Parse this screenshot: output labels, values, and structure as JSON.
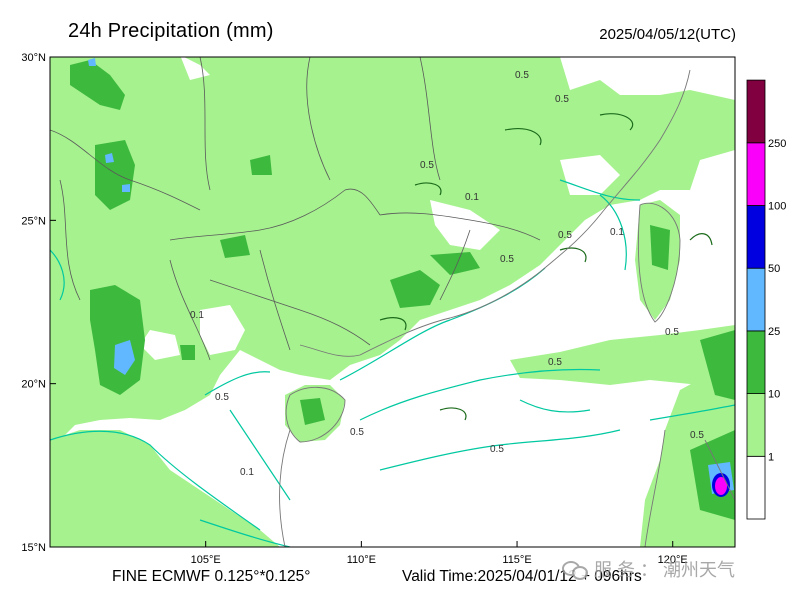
{
  "title": "24h Precipitation (mm)",
  "init_time": "2025/04/05/12(UTC)",
  "footer": {
    "model": "FINE ECMWF 0.125°*0.125°",
    "valid": "Valid Time:2025/04/01/12 + 096hrs"
  },
  "watermark": "服 务 ： 潮州天气",
  "map": {
    "lon_range": [
      100,
      122
    ],
    "lat_range": [
      15,
      30
    ],
    "lon_ticks": [
      {
        "v": 105,
        "label": "105°E"
      },
      {
        "v": 110,
        "label": "110°E"
      },
      {
        "v": 115,
        "label": "115°E"
      },
      {
        "v": 120,
        "label": "120°E"
      }
    ],
    "lat_ticks": [
      {
        "v": 15,
        "label": "15°N"
      },
      {
        "v": 20,
        "label": "20°N"
      },
      {
        "v": 25,
        "label": "25°N"
      },
      {
        "v": 30,
        "label": "30°N"
      }
    ]
  },
  "colorbar": {
    "bins": [
      {
        "color": "#ffffff",
        "label": "1"
      },
      {
        "color": "#a6f28f",
        "label": "10"
      },
      {
        "color": "#3dba3d",
        "label": "25"
      },
      {
        "color": "#61b8ff",
        "label": "50"
      },
      {
        "color": "#0000e1",
        "label": "100"
      },
      {
        "color": "#fa00fa",
        "label": "250"
      },
      {
        "color": "#800040",
        "label": ""
      }
    ]
  },
  "contour_labels": [
    "0.5",
    "0.5",
    "0.5",
    "0.1",
    "0.5",
    "0.5",
    "0.1",
    "0.5",
    "0.5",
    "0.1",
    "0.5",
    "0.5",
    "0.1",
    "0.5",
    "0.5"
  ],
  "colors": {
    "light_green": "#a6f28f",
    "mid_green": "#3dba3d",
    "dark_green_line": "#1b6b1b",
    "contour_line": "#00c8a0",
    "border": "#5a5a5a"
  }
}
